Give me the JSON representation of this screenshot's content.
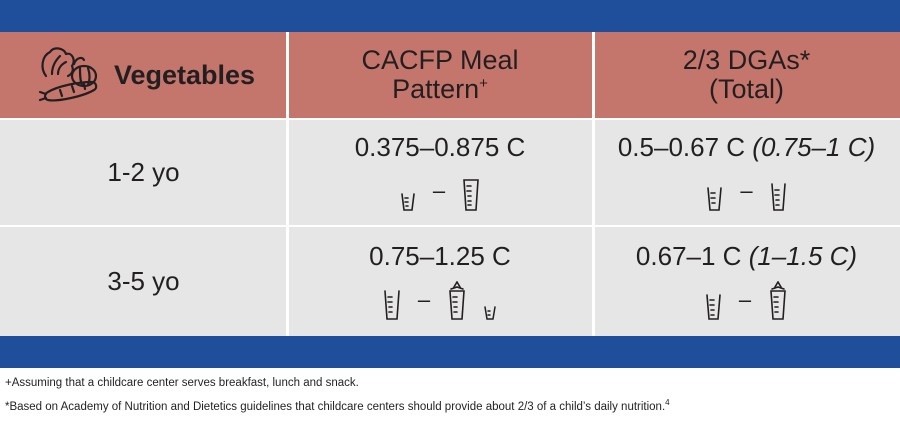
{
  "header": {
    "col1_title": "Vegetables",
    "col2_line1": "CACFP Meal",
    "col2_line2": "Pattern",
    "col2_mark": "+",
    "col3_line1": "2/3 DGAs*",
    "col3_line2": "(Total)",
    "col1_icon": "vegetables-icon"
  },
  "rows": [
    {
      "age": "1-2 yo",
      "cacfp": "0.375–0.875 C",
      "dga": "0.5–0.67 C",
      "dga_total": "(0.75–1 C)",
      "dash": "–"
    },
    {
      "age": "3-5 yo",
      "cacfp": "0.75–1.25 C",
      "dga": "0.67–1 C",
      "dga_total": "(1–1.5 C)",
      "dash": "–"
    }
  ],
  "icons": {
    "small_cup": "small-measuring-cup-icon",
    "cup": "measuring-cup-icon",
    "carrot_cup": "carrot-cup-icon"
  },
  "colors": {
    "band": "#1f4f9a",
    "header": "#c5766c",
    "rows": "#e6e6e6"
  },
  "footnotes": {
    "plus_note": "+Assuming that a childcare center serves breakfast, lunch and snack.",
    "star_note": "*Based on Academy of Nutrition and Dietetics guidelines that childcare centers should provide about 2/3 of a child’s daily nutrition.",
    "star_ref": "4"
  }
}
